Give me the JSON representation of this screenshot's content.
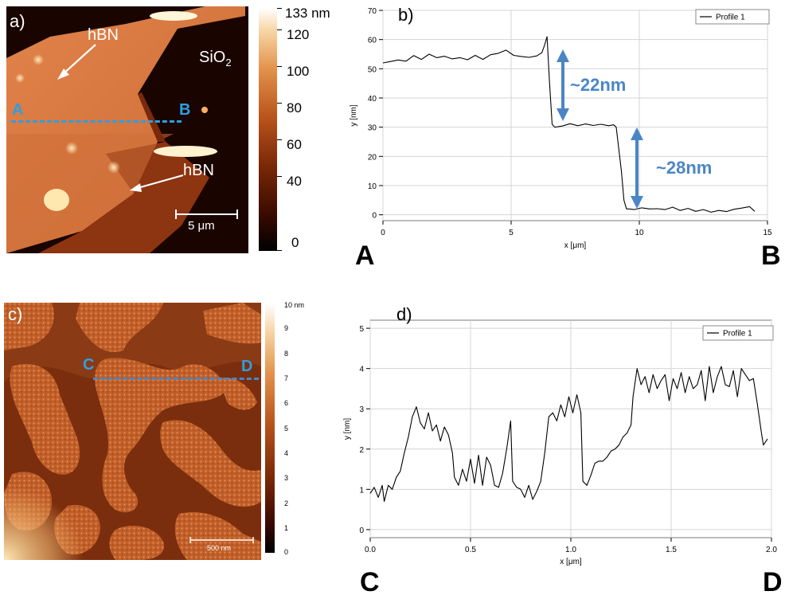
{
  "colors": {
    "marker_blue": "#2f9ee0",
    "annotation_blue": "#4a86c6",
    "afm_dark": "#1a0500",
    "afm_mid": "#c0521c",
    "afm_light": "#fff6d8",
    "grid": "#d4d4d4",
    "trace": "#000000"
  },
  "panel_a": {
    "label": "a)",
    "hbn_top": "hBN",
    "hbn_bottom": "hBN",
    "sio2": "SiO",
    "sio2_sub": "2",
    "marker_a": "A",
    "marker_b": "B",
    "scalebar": "5 μm",
    "colorbar_ticks": [
      "133 nm",
      "120",
      "100",
      "80",
      "60",
      "40",
      "0"
    ]
  },
  "panel_c": {
    "label": "c)",
    "marker_c": "C",
    "marker_d": "D",
    "scalebar": "500 nm",
    "colorbar_ticks": [
      "10 nm",
      "9",
      "8",
      "7",
      "6",
      "5",
      "4",
      "3",
      "2",
      "1",
      "0"
    ]
  },
  "panel_b": {
    "label": "b)"
  },
  "panel_d": {
    "label": "d)"
  },
  "endpoints": {
    "A": "A",
    "B": "B",
    "C": "C",
    "D": "D"
  },
  "chart_data": [
    {
      "id": "b",
      "type": "line",
      "title": "",
      "xlabel": "x [μm]",
      "ylabel": "y [nm]",
      "xlim": [
        0,
        15
      ],
      "ylim": [
        -2,
        70
      ],
      "xticks": [
        0,
        5,
        10,
        15
      ],
      "yticks": [
        0,
        10,
        20,
        30,
        40,
        50,
        60,
        70
      ],
      "grid": true,
      "legend_position": "top-right",
      "series": [
        {
          "name": "Profile 1",
          "x": [
            0,
            0.3,
            0.6,
            0.9,
            1.2,
            1.5,
            1.8,
            2.1,
            2.4,
            2.7,
            3.0,
            3.3,
            3.6,
            3.9,
            4.2,
            4.5,
            4.8,
            5.1,
            5.4,
            5.7,
            6.0,
            6.2,
            6.3,
            6.4,
            6.5,
            6.6,
            6.7,
            7.0,
            7.3,
            7.6,
            7.9,
            8.2,
            8.5,
            8.8,
            9.0,
            9.1,
            9.3,
            9.4,
            9.5,
            9.6,
            9.8,
            10.1,
            10.4,
            10.7,
            11.0,
            11.3,
            11.6,
            11.9,
            12.2,
            12.5,
            12.8,
            13.1,
            13.4,
            13.7,
            14.0,
            14.3,
            14.5
          ],
          "values": [
            52,
            52.5,
            53,
            52.6,
            54.5,
            53.2,
            55,
            53.8,
            54.3,
            53.4,
            53.8,
            53.1,
            54.6,
            53.2,
            54.8,
            55.3,
            56.4,
            54.6,
            54.2,
            53.9,
            54.4,
            55.5,
            58,
            61,
            45,
            31,
            30,
            30.4,
            31.2,
            30.5,
            31.1,
            30.6,
            31,
            30.5,
            30.8,
            30,
            15,
            5,
            2,
            2,
            1.8,
            2.4,
            2,
            2.1,
            1.8,
            2.6,
            1.5,
            2.2,
            1.2,
            1.8,
            0.9,
            1.5,
            1.1,
            1.9,
            2.3,
            2.8,
            1.2
          ]
        }
      ],
      "annotations": [
        "~22nm",
        "~28nm"
      ]
    },
    {
      "id": "d",
      "type": "line",
      "title": "",
      "xlabel": "x [μm]",
      "ylabel": "y [nm]",
      "xlim": [
        0,
        2.0
      ],
      "ylim": [
        -0.2,
        5.2
      ],
      "xticks": [
        0.0,
        0.5,
        1.0,
        1.5,
        2.0
      ],
      "yticks": [
        0,
        1,
        2,
        3,
        4,
        5
      ],
      "grid": true,
      "legend_position": "top-right",
      "series": [
        {
          "name": "Profile 1",
          "x": [
            0.0,
            0.02,
            0.04,
            0.06,
            0.07,
            0.09,
            0.11,
            0.13,
            0.15,
            0.17,
            0.19,
            0.21,
            0.23,
            0.25,
            0.27,
            0.29,
            0.31,
            0.33,
            0.35,
            0.37,
            0.39,
            0.41,
            0.42,
            0.44,
            0.46,
            0.48,
            0.5,
            0.52,
            0.54,
            0.56,
            0.58,
            0.6,
            0.62,
            0.64,
            0.66,
            0.68,
            0.7,
            0.71,
            0.73,
            0.75,
            0.77,
            0.79,
            0.81,
            0.83,
            0.85,
            0.87,
            0.89,
            0.91,
            0.93,
            0.95,
            0.97,
            0.99,
            1.01,
            1.03,
            1.05,
            1.06,
            1.08,
            1.1,
            1.12,
            1.14,
            1.16,
            1.18,
            1.2,
            1.22,
            1.24,
            1.26,
            1.28,
            1.3,
            1.31,
            1.33,
            1.35,
            1.37,
            1.39,
            1.41,
            1.43,
            1.45,
            1.47,
            1.49,
            1.51,
            1.53,
            1.55,
            1.57,
            1.59,
            1.61,
            1.63,
            1.65,
            1.67,
            1.69,
            1.71,
            1.73,
            1.75,
            1.77,
            1.79,
            1.81,
            1.83,
            1.85,
            1.87,
            1.89,
            1.91,
            1.93,
            1.95,
            1.96,
            1.98
          ],
          "values": [
            0.9,
            1.05,
            0.8,
            1.1,
            0.7,
            1.1,
            1.0,
            1.3,
            1.45,
            1.9,
            2.3,
            2.8,
            3.05,
            2.65,
            2.5,
            2.9,
            2.45,
            2.6,
            2.2,
            2.55,
            2.35,
            1.9,
            1.3,
            1.1,
            1.5,
            1.2,
            1.75,
            1.15,
            1.85,
            1.1,
            1.8,
            1.6,
            1.1,
            1.05,
            1.4,
            2.0,
            2.7,
            1.2,
            1.05,
            1.0,
            0.8,
            1.1,
            0.75,
            0.95,
            1.2,
            1.9,
            2.8,
            2.9,
            2.7,
            3.1,
            2.8,
            3.3,
            2.9,
            3.35,
            2.9,
            1.2,
            1.1,
            1.35,
            1.65,
            1.7,
            1.7,
            1.8,
            1.95,
            2.0,
            2.1,
            2.3,
            2.4,
            2.6,
            3.3,
            4.0,
            3.6,
            3.8,
            3.4,
            3.85,
            3.5,
            3.7,
            3.85,
            3.2,
            3.75,
            3.5,
            3.9,
            3.4,
            3.8,
            3.5,
            3.6,
            3.95,
            3.2,
            4.05,
            3.4,
            3.8,
            4.05,
            3.6,
            3.55,
            3.95,
            3.3,
            4.0,
            3.85,
            3.7,
            3.75,
            3.1,
            2.4,
            2.1,
            2.25
          ]
        }
      ]
    }
  ]
}
